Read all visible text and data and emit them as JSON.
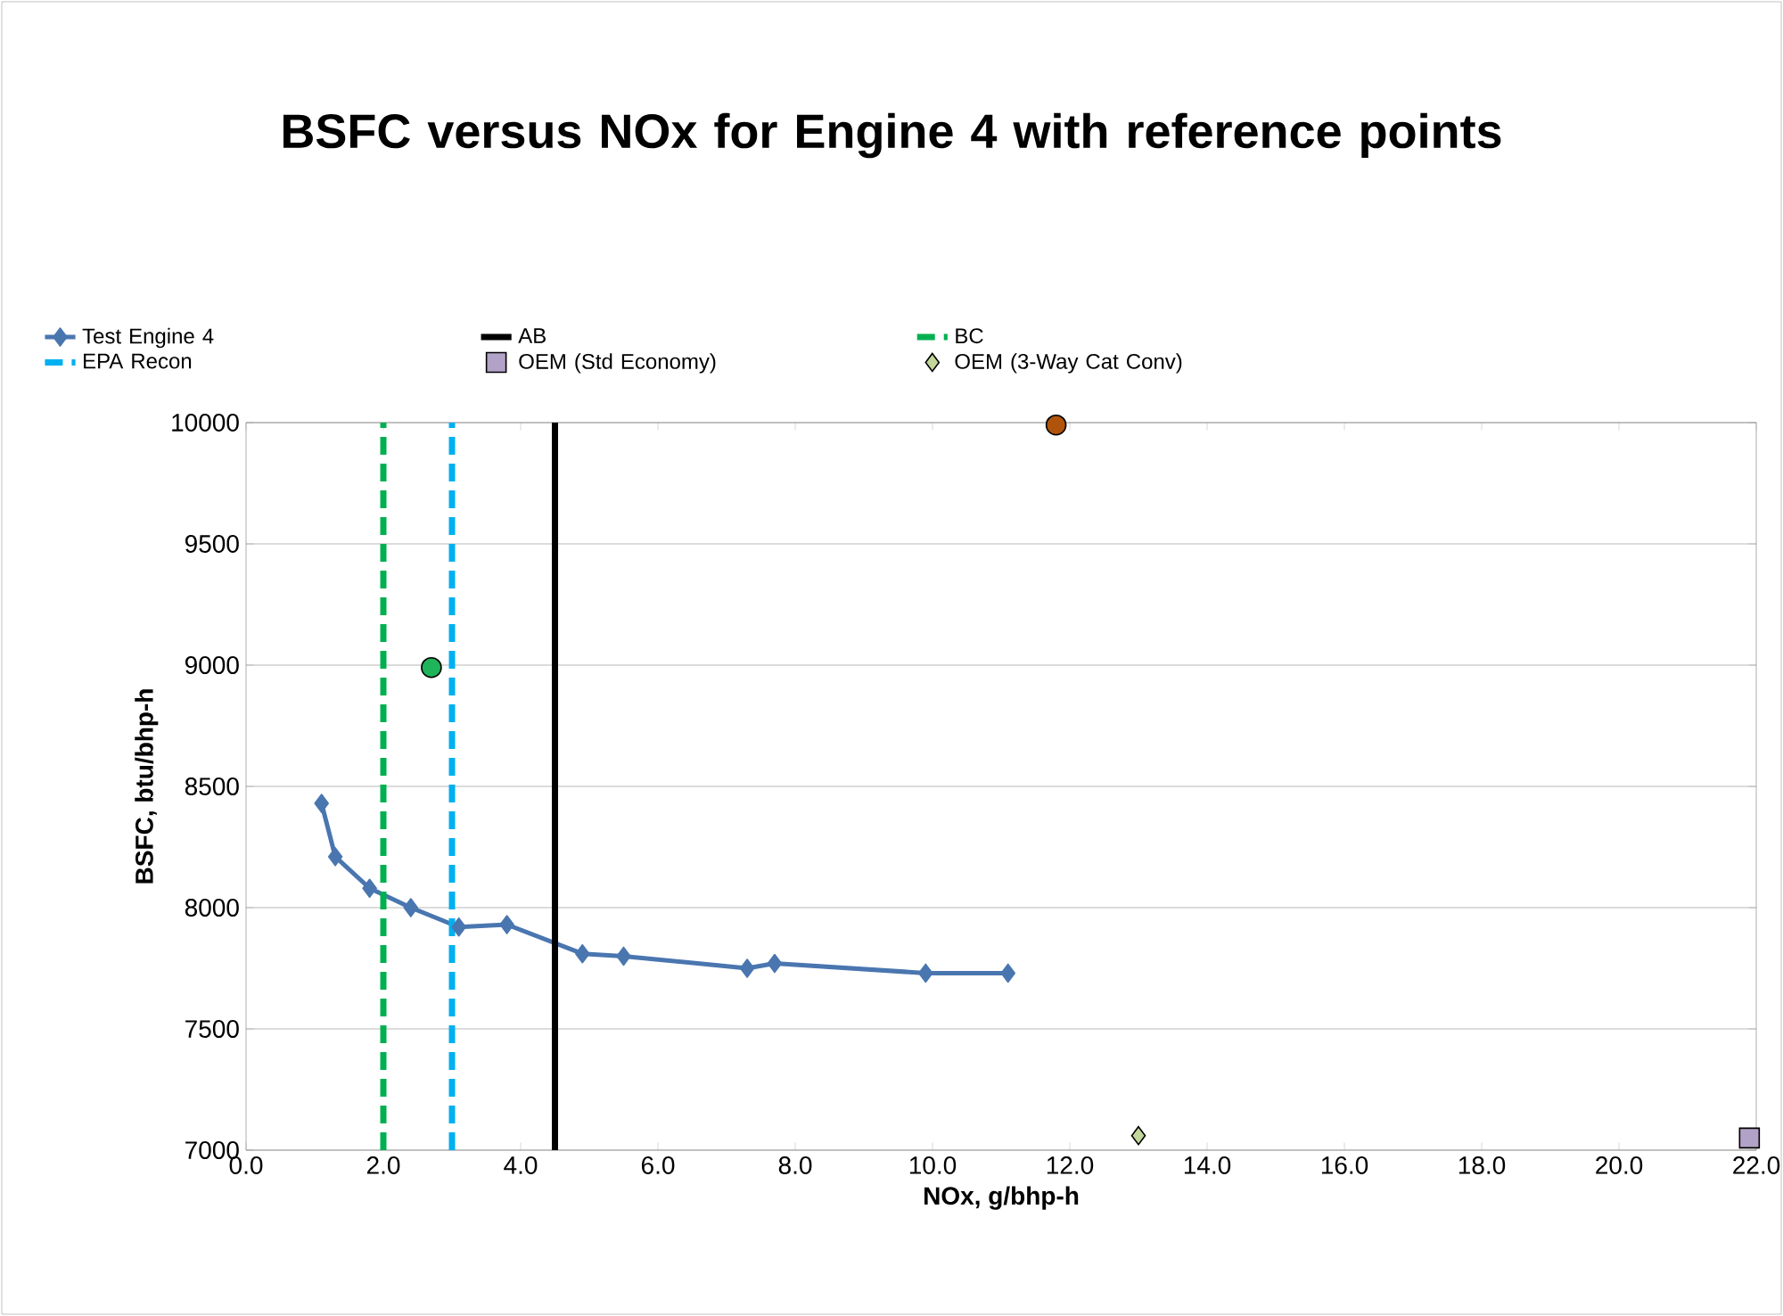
{
  "chart_data": {
    "type": "line",
    "title": "BSFC versus NOx for Engine 4 with reference points",
    "xlabel": "NOx, g/bhp-h",
    "ylabel": "BSFC, btu/bhp-h",
    "xlim": [
      0,
      22
    ],
    "ylim": [
      7000,
      10000
    ],
    "xticks": [
      {
        "value": 0,
        "label": "0.0"
      },
      {
        "value": 2,
        "label": "2.0"
      },
      {
        "value": 4,
        "label": "4.0"
      },
      {
        "value": 6,
        "label": "6.0"
      },
      {
        "value": 8,
        "label": "8.0"
      },
      {
        "value": 10,
        "label": "10.0"
      },
      {
        "value": 12,
        "label": "12.0"
      },
      {
        "value": 14,
        "label": "14.0"
      },
      {
        "value": 16,
        "label": "16.0"
      },
      {
        "value": 18,
        "label": "18.0"
      },
      {
        "value": 20,
        "label": "20.0"
      },
      {
        "value": 22,
        "label": "22.0"
      }
    ],
    "yticks": [
      7000,
      7500,
      8000,
      8500,
      9000,
      9500,
      10000
    ],
    "grid": "y",
    "legend": "top",
    "series": [
      {
        "name": "Test Engine 4",
        "type": "line",
        "color": "#4a76b0",
        "marker": "diamond",
        "x": [
          1.1,
          1.3,
          1.8,
          2.4,
          3.1,
          3.8,
          4.9,
          5.5,
          7.3,
          7.7,
          9.9,
          11.1
        ],
        "values": [
          8430,
          8210,
          8080,
          8000,
          7920,
          7930,
          7810,
          7800,
          7750,
          7770,
          7730,
          7730
        ]
      },
      {
        "type": "scatter",
        "color": "#b0540c",
        "marker": "circle",
        "x": [
          11.8
        ],
        "values": [
          9990
        ]
      },
      {
        "type": "scatter",
        "color": "#1fb35a",
        "marker": "circle",
        "x": [
          2.7
        ],
        "values": [
          8990
        ]
      },
      {
        "name": "OEM (Std Economy)",
        "type": "scatter",
        "color": "#b3a2c7",
        "marker": "square",
        "x": [
          21.9
        ],
        "values": [
          7050
        ]
      },
      {
        "name": "OEM (3-Way Cat Conv)",
        "type": "scatter",
        "color": "#c3d69b",
        "marker": "diamond",
        "x": [
          13.0
        ],
        "values": [
          7060
        ]
      }
    ],
    "ref_lines": [
      {
        "axis": "x",
        "value": 4.5,
        "label": "AB",
        "color": "#000000",
        "line_style": "solid"
      },
      {
        "axis": "x",
        "value": 2.0,
        "label": "BC",
        "color": "#00b050",
        "line_style": "dashed"
      },
      {
        "axis": "x",
        "value": 3.0,
        "label": "EPA Recon",
        "color": "#00b0f0",
        "line_style": "dashed"
      }
    ]
  }
}
